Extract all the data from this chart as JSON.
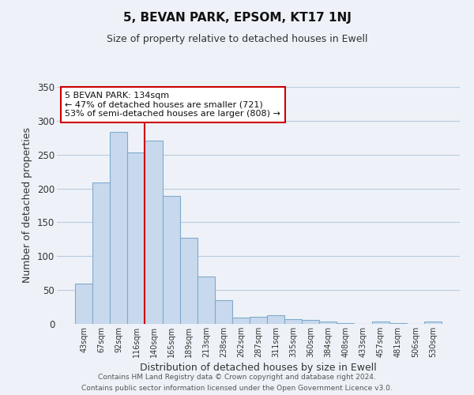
{
  "title": "5, BEVAN PARK, EPSOM, KT17 1NJ",
  "subtitle": "Size of property relative to detached houses in Ewell",
  "xlabel": "Distribution of detached houses by size in Ewell",
  "ylabel": "Number of detached properties",
  "bar_labels": [
    "43sqm",
    "67sqm",
    "92sqm",
    "116sqm",
    "140sqm",
    "165sqm",
    "189sqm",
    "213sqm",
    "238sqm",
    "262sqm",
    "287sqm",
    "311sqm",
    "335sqm",
    "360sqm",
    "384sqm",
    "408sqm",
    "433sqm",
    "457sqm",
    "481sqm",
    "506sqm",
    "530sqm"
  ],
  "bar_values": [
    59,
    209,
    283,
    253,
    271,
    189,
    127,
    70,
    35,
    9,
    10,
    13,
    7,
    6,
    4,
    1,
    0,
    3,
    1,
    0,
    3
  ],
  "bar_color": "#c9d9ed",
  "bar_edge_color": "#7faacc",
  "vline_x_index": 3,
  "vline_color": "#cc0000",
  "annotation_title": "5 BEVAN PARK: 134sqm",
  "annotation_line1": "← 47% of detached houses are smaller (721)",
  "annotation_line2": "53% of semi-detached houses are larger (808) →",
  "annotation_box_color": "#ffffff",
  "annotation_box_edge": "#cc0000",
  "ylim": [
    0,
    350
  ],
  "yticks": [
    0,
    50,
    100,
    150,
    200,
    250,
    300,
    350
  ],
  "bg_color": "#eef2f8",
  "grid_color": "#b8cce0",
  "footer1": "Contains HM Land Registry data © Crown copyright and database right 2024.",
  "footer2": "Contains public sector information licensed under the Open Government Licence v3.0."
}
